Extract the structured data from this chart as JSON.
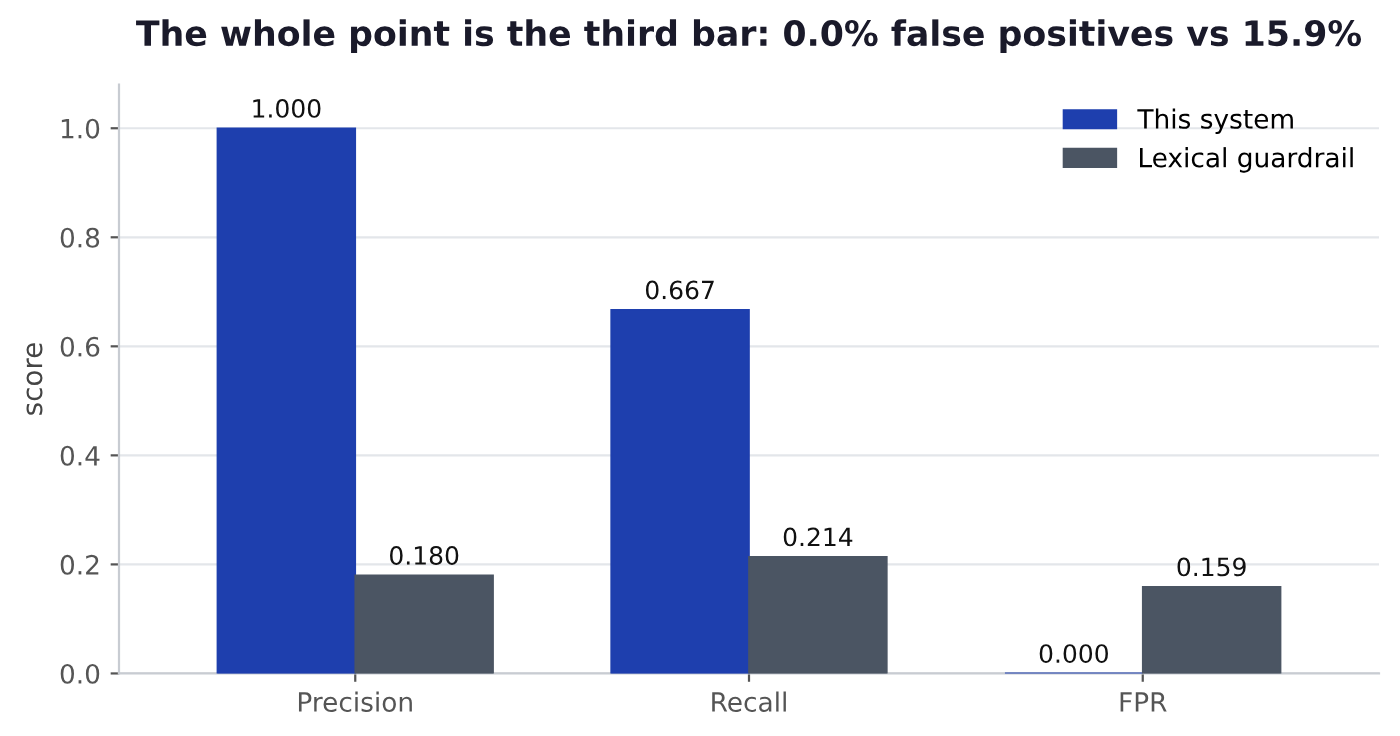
{
  "chart_data": {
    "type": "bar",
    "title": "The whole point is the third bar: 0.0% false positives vs 15.9%",
    "ylabel": "score",
    "categories": [
      "Precision",
      "Recall",
      "FPR"
    ],
    "series": [
      {
        "name": "This system",
        "color": "#1e3fae",
        "values": [
          1.0,
          0.667,
          0.0
        ],
        "value_labels": [
          "1.000",
          "0.667",
          "0.000"
        ]
      },
      {
        "name": "Lexical guardrail",
        "color": "#4b5563",
        "values": [
          0.18,
          0.214,
          0.159
        ],
        "value_labels": [
          "0.180",
          "0.214",
          "0.159"
        ]
      }
    ],
    "ylim": [
      0,
      1.08
    ],
    "yticks": [
      {
        "value": 0,
        "label": "0.0"
      },
      {
        "value": 0.2,
        "label": "0.2"
      },
      {
        "value": 0.4,
        "label": "0.4"
      },
      {
        "value": 0.6,
        "label": "0.6"
      },
      {
        "value": 0.8,
        "label": "0.8"
      },
      {
        "value": 1.0,
        "label": "1.0"
      }
    ],
    "grid": "y",
    "legend": "top right"
  }
}
